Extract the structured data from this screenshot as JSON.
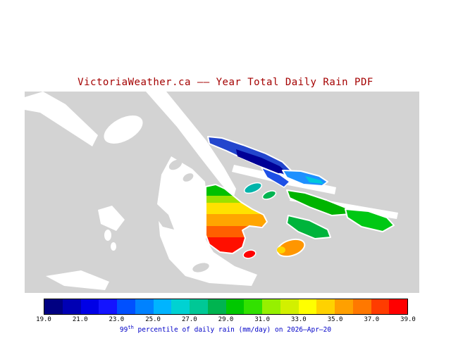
{
  "title": "VictoriaWeather.ca –– Year Total Daily Rain PDF",
  "map": {
    "colors": {
      "land": "#d3d3d3",
      "water": "#ffffff",
      "outline": "#ffffff"
    },
    "regions": {
      "navy_island_outer": "#2346cd",
      "navy_island_core": "#000096",
      "navy_island_tail": "#1e50e6",
      "blue_island": "#1e90ff",
      "blue_island_cyan_patch": "#00c8dc",
      "teal_islet": "#00b4aa",
      "small_green_islet": "#00b450",
      "green_island_north": "#00b400",
      "green_island_east": "#00c814",
      "green_island_south": "#00b43c",
      "peninsula_bands": [
        "#00c000",
        "#9be100",
        "#ffe100",
        "#ffa500",
        "#ff5f00",
        "#ff0f00"
      ],
      "red_islet": "#ff0000",
      "orange_islet": "#ff9600",
      "orange_islet_tip": "#ffd500"
    }
  },
  "colorbar": {
    "tick_labels": [
      "19.0",
      "21.0",
      "23.0",
      "25.0",
      "27.0",
      "29.0",
      "31.0",
      "33.0",
      "35.0",
      "37.0",
      "39.0"
    ],
    "segment_colors": [
      "#000082",
      "#0000b4",
      "#0000e6",
      "#1414ff",
      "#0050ff",
      "#0082ff",
      "#00b4ff",
      "#00d2d2",
      "#00c896",
      "#00b450",
      "#00c800",
      "#32e100",
      "#96f000",
      "#d2f000",
      "#ffff00",
      "#ffd200",
      "#ffa000",
      "#ff7800",
      "#ff3c00",
      "#ff0000"
    ]
  },
  "caption": {
    "number": "99",
    "ordinal_suffix": "th",
    "rest": " percentile of daily rain (mm/day) on 2026–Apr–20"
  }
}
